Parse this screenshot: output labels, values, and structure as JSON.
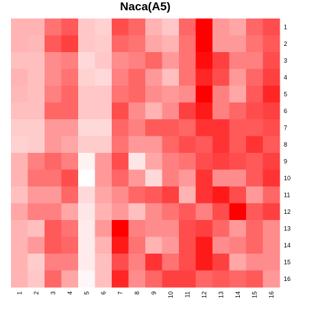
{
  "chart_data": {
    "type": "heatmap",
    "title": "Naca(A5)",
    "xlabel": "",
    "ylabel": "",
    "x_ticks": [
      "1",
      "2",
      "3",
      "4",
      "5",
      "6",
      "7",
      "8",
      "9",
      "10",
      "11",
      "12",
      "13",
      "14",
      "15",
      "16"
    ],
    "y_ticks": [
      "1",
      "2",
      "3",
      "4",
      "5",
      "6",
      "7",
      "8",
      "9",
      "10",
      "11",
      "12",
      "13",
      "14",
      "15",
      "16"
    ],
    "value_range": [
      0,
      1
    ],
    "color_low": "#ffffff",
    "color_high": "#ff0000",
    "values": [
      [
        0.3,
        0.3,
        0.55,
        0.65,
        0.22,
        0.18,
        0.7,
        0.6,
        0.3,
        0.22,
        0.6,
        1.0,
        0.4,
        0.35,
        0.6,
        0.7
      ],
      [
        0.3,
        0.28,
        0.65,
        0.75,
        0.22,
        0.2,
        0.6,
        0.55,
        0.35,
        0.3,
        0.55,
        1.0,
        0.4,
        0.4,
        0.55,
        0.65
      ],
      [
        0.25,
        0.25,
        0.45,
        0.5,
        0.15,
        0.22,
        0.45,
        0.5,
        0.6,
        0.4,
        0.55,
        0.95,
        0.75,
        0.5,
        0.5,
        0.7
      ],
      [
        0.3,
        0.25,
        0.45,
        0.55,
        0.18,
        0.15,
        0.5,
        0.6,
        0.4,
        0.25,
        0.55,
        0.85,
        0.7,
        0.4,
        0.6,
        0.75
      ],
      [
        0.28,
        0.25,
        0.5,
        0.6,
        0.22,
        0.22,
        0.55,
        0.6,
        0.45,
        0.4,
        0.45,
        1.0,
        0.5,
        0.35,
        0.65,
        0.85
      ],
      [
        0.25,
        0.25,
        0.6,
        0.6,
        0.22,
        0.22,
        0.7,
        0.45,
        0.3,
        0.45,
        0.75,
        0.9,
        0.5,
        0.6,
        0.7,
        0.75
      ],
      [
        0.2,
        0.2,
        0.4,
        0.4,
        0.15,
        0.15,
        0.6,
        0.5,
        0.65,
        0.65,
        0.6,
        0.8,
        0.8,
        0.65,
        0.65,
        0.7
      ],
      [
        0.18,
        0.2,
        0.4,
        0.35,
        0.2,
        0.2,
        0.55,
        0.4,
        0.4,
        0.6,
        0.7,
        0.65,
        0.8,
        0.65,
        0.8,
        0.65
      ],
      [
        0.3,
        0.5,
        0.6,
        0.5,
        0.05,
        0.4,
        0.7,
        0.1,
        0.35,
        0.5,
        0.55,
        0.7,
        0.75,
        0.7,
        0.65,
        0.75
      ],
      [
        0.3,
        0.55,
        0.55,
        0.7,
        0.0,
        0.4,
        0.6,
        0.4,
        0.15,
        0.5,
        0.4,
        0.8,
        0.45,
        0.45,
        0.65,
        0.8
      ],
      [
        0.25,
        0.4,
        0.4,
        0.6,
        0.15,
        0.35,
        0.45,
        0.6,
        0.65,
        0.75,
        0.3,
        0.8,
        0.9,
        0.7,
        0.4,
        0.6
      ],
      [
        0.35,
        0.5,
        0.5,
        0.35,
        0.1,
        0.3,
        0.4,
        0.25,
        0.45,
        0.55,
        0.65,
        0.5,
        0.7,
        1.0,
        0.65,
        0.75
      ],
      [
        0.3,
        0.25,
        0.65,
        0.55,
        0.08,
        0.4,
        1.0,
        0.5,
        0.45,
        0.45,
        0.7,
        0.75,
        0.6,
        0.4,
        0.6,
        0.45
      ],
      [
        0.3,
        0.4,
        0.65,
        0.6,
        0.08,
        0.3,
        0.9,
        0.55,
        0.3,
        0.4,
        0.7,
        0.9,
        0.45,
        0.5,
        0.6,
        0.45
      ],
      [
        0.3,
        0.2,
        0.5,
        0.5,
        0.08,
        0.25,
        0.7,
        0.5,
        0.8,
        0.55,
        0.7,
        0.9,
        0.75,
        0.35,
        0.45,
        0.45
      ],
      [
        0.3,
        0.22,
        0.6,
        0.35,
        0.03,
        0.25,
        0.85,
        0.45,
        0.6,
        0.75,
        0.75,
        0.6,
        0.65,
        0.6,
        0.65,
        0.4
      ]
    ]
  }
}
